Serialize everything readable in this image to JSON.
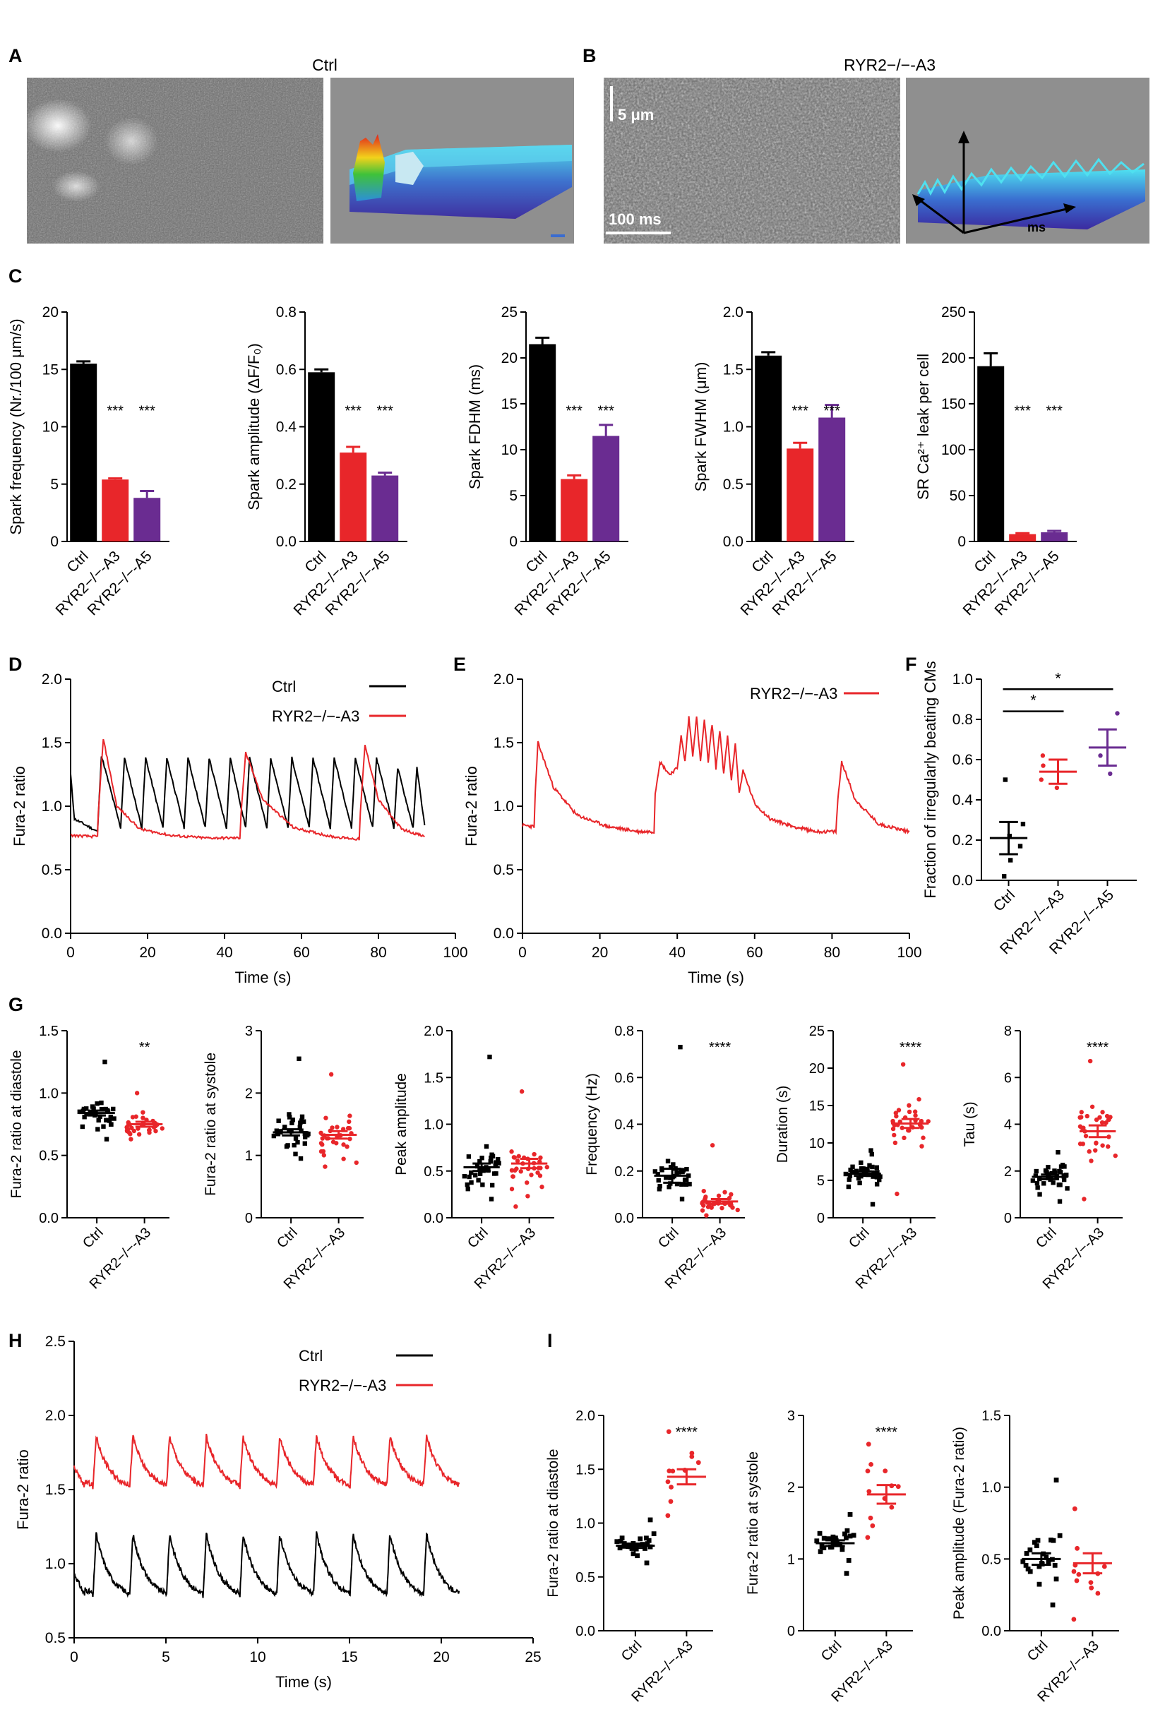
{
  "panel_letters": [
    "A",
    "B",
    "C",
    "D",
    "E",
    "F",
    "G",
    "H",
    "I"
  ],
  "panel_a": {
    "title": "Ctrl"
  },
  "panel_b": {
    "title": "RYR2−/−-A3",
    "scale_um": "5 μm",
    "scale_ms": "100 ms",
    "surface_axis": "ms"
  },
  "colors": {
    "ctrl": "#000000",
    "a3": "#e8262a",
    "a5": "#6a2c91",
    "gray": "#8c8c8c"
  },
  "sig": {
    "three": "***",
    "two": "**",
    "four": "****",
    "one": "*"
  },
  "chart_data": [
    {
      "id": "C1",
      "type": "bar",
      "categories": [
        "Ctrl",
        "RYR2−/−-A3",
        "RYR2−/−-A5"
      ],
      "values": [
        15.5,
        5.4,
        3.8
      ],
      "errors": [
        0.2,
        0.1,
        0.6
      ],
      "ylabel": "Spark frequency (Nr./100 μm/s)",
      "ylim": [
        0,
        20
      ],
      "yticks": [
        "0",
        "5",
        "10",
        "15",
        "20"
      ],
      "annotations": [
        "",
        "***",
        "***"
      ]
    },
    {
      "id": "C2",
      "type": "bar",
      "categories": [
        "Ctrl",
        "RYR2−/−-A3",
        "RYR2−/−-A5"
      ],
      "values": [
        0.59,
        0.31,
        0.23
      ],
      "errors": [
        0.01,
        0.02,
        0.01
      ],
      "ylabel": "Spark amplitude (ΔF/F₀)",
      "ylim": [
        0,
        0.8
      ],
      "yticks": [
        "0.0",
        "0.2",
        "0.4",
        "0.6",
        "0.8"
      ],
      "annotations": [
        "",
        "***",
        "***"
      ]
    },
    {
      "id": "C3",
      "type": "bar",
      "categories": [
        "Ctrl",
        "RYR2−/−-A3",
        "RYR2−/−-A5"
      ],
      "values": [
        21.5,
        6.8,
        11.5
      ],
      "errors": [
        0.7,
        0.4,
        1.2
      ],
      "ylabel": "Spark FDHM (ms)",
      "ylim": [
        0,
        25
      ],
      "yticks": [
        "0",
        "5",
        "10",
        "15",
        "20",
        "25"
      ],
      "annotations": [
        "",
        "***",
        "***"
      ]
    },
    {
      "id": "C4",
      "type": "bar",
      "categories": [
        "Ctrl",
        "RYR2−/−-A3",
        "RYR2−/−-A5"
      ],
      "values": [
        1.62,
        0.81,
        1.08
      ],
      "errors": [
        0.03,
        0.05,
        0.11
      ],
      "ylabel": "Spark FWHM (μm)",
      "ylim": [
        0,
        2.0
      ],
      "yticks": [
        "0.0",
        "0.5",
        "1.0",
        "1.5",
        "2.0"
      ],
      "annotations": [
        "",
        "***",
        "***"
      ]
    },
    {
      "id": "C5",
      "type": "bar",
      "categories": [
        "Ctrl",
        "RYR2−/−-A3",
        "RYR2−/−-A5"
      ],
      "values": [
        191,
        8,
        10
      ],
      "errors": [
        14,
        1,
        1.5
      ],
      "ylabel": "SR Ca²⁺ leak per cell",
      "ylim": [
        0,
        250
      ],
      "yticks": [
        "0",
        "50",
        "100",
        "150",
        "200",
        "250"
      ],
      "annotations": [
        "",
        "***",
        "***"
      ]
    },
    {
      "id": "D",
      "type": "line",
      "xlabel": "Time (s)",
      "ylabel": "Fura-2 ratio",
      "xlim": [
        0,
        100
      ],
      "ylim": [
        0,
        2.0
      ],
      "xticks": [
        "0",
        "20",
        "40",
        "60",
        "80",
        "100"
      ],
      "yticks": [
        "0.0",
        "0.5",
        "1.0",
        "1.5",
        "2.0"
      ],
      "legend": [
        "Ctrl",
        "RYR2−/−-A3"
      ],
      "series": [
        {
          "name": "Ctrl",
          "x": [
            0,
            1,
            7,
            8,
            13,
            14,
            18.5,
            19.5,
            24,
            25,
            29.5,
            30.5,
            35,
            36,
            40.5,
            41.5,
            45.5,
            46.5,
            51,
            52,
            56.5,
            57.5,
            62,
            63,
            67.5,
            68.5,
            73,
            74,
            78.5,
            79.5,
            84,
            85,
            89,
            90,
            92
          ],
          "y": [
            1.25,
            0.9,
            0.8,
            1.4,
            0.83,
            1.38,
            0.83,
            1.38,
            0.83,
            1.38,
            0.83,
            1.38,
            0.83,
            1.38,
            0.83,
            1.38,
            0.83,
            1.38,
            0.83,
            1.38,
            0.83,
            1.38,
            0.83,
            1.38,
            0.83,
            1.38,
            0.83,
            1.38,
            0.83,
            1.38,
            0.83,
            1.3,
            0.83,
            1.3,
            0.85
          ]
        },
        {
          "name": "RYR2−/−-A3",
          "x": [
            0,
            7,
            7.2,
            8.5,
            12,
            18,
            26,
            35,
            44,
            44.3,
            45.5,
            50,
            58,
            68,
            75,
            75.3,
            76.5,
            80,
            86,
            92
          ],
          "y": [
            0.77,
            0.76,
            0.95,
            1.53,
            1.0,
            0.82,
            0.77,
            0.75,
            0.75,
            0.95,
            1.42,
            1.05,
            0.83,
            0.76,
            0.74,
            0.95,
            1.48,
            1.05,
            0.82,
            0.76
          ]
        }
      ]
    },
    {
      "id": "E",
      "type": "line",
      "xlabel": "Time (s)",
      "ylabel": "Fura-2 ratio",
      "xlim": [
        0,
        100
      ],
      "ylim": [
        0,
        2.0
      ],
      "xticks": [
        "0",
        "20",
        "40",
        "60",
        "80",
        "100"
      ],
      "yticks": [
        "0.0",
        "0.5",
        "1.0",
        "1.5",
        "2.0"
      ],
      "legend": [
        "RYR2−/−-A3"
      ],
      "series": [
        {
          "name": "RYR2−/−-A3",
          "x": [
            0,
            3,
            3.3,
            4,
            8,
            14,
            22,
            30,
            34,
            34.3,
            35.5,
            38,
            40,
            41,
            42,
            43,
            44,
            45,
            46,
            47,
            48,
            49,
            50,
            51,
            52,
            53,
            54,
            55,
            56,
            57,
            60,
            64,
            70,
            76,
            81,
            81.5,
            82.5,
            86,
            92,
            100
          ],
          "y": [
            0.85,
            0.84,
            1.1,
            1.5,
            1.15,
            0.93,
            0.84,
            0.8,
            0.8,
            1.1,
            1.35,
            1.25,
            1.3,
            1.55,
            1.35,
            1.7,
            1.4,
            1.7,
            1.35,
            1.68,
            1.35,
            1.65,
            1.3,
            1.6,
            1.25,
            1.55,
            1.2,
            1.5,
            1.1,
            1.28,
            1.02,
            0.9,
            0.84,
            0.8,
            0.8,
            1.05,
            1.35,
            1.05,
            0.86,
            0.8
          ]
        }
      ]
    },
    {
      "id": "F",
      "type": "scatter",
      "ylabel": "Fraction of irregularly beating CMs",
      "ylim": [
        0,
        1.0
      ],
      "yticks": [
        "0.0",
        "0.2",
        "0.4",
        "0.6",
        "0.8",
        "1.0"
      ],
      "categories": [
        "Ctrl",
        "RYR2−/−-A3",
        "RYR2−/−-A5"
      ],
      "mean": [
        0.21,
        0.54,
        0.66
      ],
      "sem": [
        0.08,
        0.06,
        0.09
      ],
      "points": [
        [
          0.5,
          0.28,
          0.22,
          0.17,
          0.1,
          0.02
        ],
        [
          0.62,
          0.57,
          0.5,
          0.46
        ],
        [
          0.83,
          0.62,
          0.53
        ]
      ],
      "brackets": [
        {
          "from": 0,
          "to": 1,
          "y": 0.84,
          "label": "*"
        },
        {
          "from": 0,
          "to": 2,
          "y": 0.95,
          "label": "*"
        }
      ]
    },
    {
      "id": "G1",
      "type": "scatter",
      "ylabel": "Fura-2 ratio at diastole",
      "ylim": [
        0,
        1.5
      ],
      "yticks": [
        "0.0",
        "0.5",
        "1.0",
        "1.5"
      ],
      "categories": [
        "Ctrl",
        "RYR2−/−-A3"
      ],
      "mean": [
        0.84,
        0.75
      ],
      "sem": [
        0.02,
        0.02
      ],
      "annotations": [
        "",
        "**"
      ],
      "spread": [
        0.1,
        0.08
      ],
      "n": [
        34,
        32
      ],
      "extremes": [
        [
          1.25,
          0.63
        ],
        [
          1.0,
          0.63
        ]
      ]
    },
    {
      "id": "G2",
      "type": "scatter",
      "ylabel": "Fura-2 ratio at systole",
      "ylim": [
        0,
        3
      ],
      "yticks": [
        "0",
        "1",
        "2",
        "3"
      ],
      "categories": [
        "Ctrl",
        "RYR2−/−-A3"
      ],
      "mean": [
        1.37,
        1.33
      ],
      "sem": [
        0.05,
        0.06
      ],
      "annotations": [
        "",
        ""
      ],
      "spread": [
        0.25,
        0.3
      ],
      "n": [
        34,
        32
      ],
      "extremes": [
        [
          2.55,
          0.95
        ],
        [
          2.3,
          0.82
        ]
      ]
    },
    {
      "id": "G3",
      "type": "scatter",
      "ylabel": "Peak amplitude",
      "ylim": [
        0,
        2.0
      ],
      "yticks": [
        "0.0",
        "0.5",
        "1.0",
        "1.5",
        "2.0"
      ],
      "categories": [
        "Ctrl",
        "RYR2−/−-A3"
      ],
      "mean": [
        0.54,
        0.58
      ],
      "sem": [
        0.04,
        0.05
      ],
      "annotations": [
        "",
        ""
      ],
      "spread": [
        0.17,
        0.25
      ],
      "n": [
        34,
        32
      ],
      "extremes": [
        [
          1.72,
          0.2
        ],
        [
          1.35,
          0.12
        ]
      ]
    },
    {
      "id": "G4",
      "type": "scatter",
      "ylabel": "Frequency (Hz)",
      "ylim": [
        0,
        0.8
      ],
      "yticks": [
        "0.0",
        "0.2",
        "0.4",
        "0.6",
        "0.8"
      ],
      "categories": [
        "Ctrl",
        "RYR2−/−-A3"
      ],
      "mean": [
        0.18,
        0.07
      ],
      "sem": [
        0.03,
        0.01
      ],
      "annotations": [
        "",
        "****"
      ],
      "spread": [
        0.06,
        0.03
      ],
      "n": [
        34,
        32
      ],
      "extremes": [
        [
          0.73,
          0.08
        ],
        [
          0.31,
          0.01
        ]
      ]
    },
    {
      "id": "G5",
      "type": "scatter",
      "ylabel": "Duration (s)",
      "ylim": [
        0,
        25
      ],
      "yticks": [
        "0",
        "5",
        "10",
        "15",
        "20",
        "25"
      ],
      "categories": [
        "Ctrl",
        "RYR2−/−-A3"
      ],
      "mean": [
        5.9,
        12.6
      ],
      "sem": [
        0.3,
        0.6
      ],
      "annotations": [
        "",
        "****"
      ],
      "spread": [
        1.6,
        2.5
      ],
      "n": [
        34,
        32
      ],
      "extremes": [
        [
          9.0,
          1.8
        ],
        [
          20.5,
          3.2
        ]
      ]
    },
    {
      "id": "G6",
      "type": "scatter",
      "ylabel": "Tau (s)",
      "ylim": [
        0,
        8
      ],
      "yticks": [
        "0",
        "2",
        "4",
        "6",
        "8"
      ],
      "categories": [
        "Ctrl",
        "RYR2−/−-A3"
      ],
      "mean": [
        1.75,
        3.7
      ],
      "sem": [
        0.1,
        0.25
      ],
      "annotations": [
        "",
        "****"
      ],
      "spread": [
        0.45,
        1.1
      ],
      "n": [
        34,
        32
      ],
      "extremes": [
        [
          2.8,
          0.7
        ],
        [
          6.7,
          0.8
        ]
      ]
    },
    {
      "id": "H",
      "type": "line",
      "xlabel": "Time (s)",
      "ylabel": "Fura-2 ratio",
      "xlim": [
        0,
        25
      ],
      "ylim": [
        0.5,
        2.5
      ],
      "xticks": [
        "0",
        "5",
        "10",
        "15",
        "20",
        "25"
      ],
      "yticks": [
        "0.5",
        "1.0",
        "1.5",
        "2.0",
        "2.5"
      ],
      "legend": [
        "Ctrl",
        "RYR2−/−-A3"
      ],
      "period_s": 2.0,
      "series": [
        {
          "name": "Ctrl",
          "baseline": 0.76,
          "peak": 1.2,
          "first_peak_s": 1.2
        },
        {
          "name": "RYR2−/−-A3",
          "baseline": 1.5,
          "peak": 1.86,
          "first_peak_s": 1.2
        }
      ]
    },
    {
      "id": "I1",
      "type": "scatter",
      "ylabel": "Fura-2 ratio at diastole",
      "ylim": [
        0,
        2.0
      ],
      "yticks": [
        "0.0",
        "0.5",
        "1.0",
        "1.5",
        "2.0"
      ],
      "categories": [
        "Ctrl",
        "RYR2−/−-A3"
      ],
      "mean": [
        0.79,
        1.43
      ],
      "sem": [
        0.02,
        0.07
      ],
      "annotations": [
        "",
        "****"
      ],
      "spread": [
        0.07,
        0.18
      ],
      "n": [
        24,
        12
      ],
      "extremes": [
        [
          1.03,
          0.63
        ],
        [
          1.85,
          1.07
        ]
      ]
    },
    {
      "id": "I2",
      "type": "scatter",
      "ylabel": "Fura-2 ratio at systole",
      "ylim": [
        0,
        3
      ],
      "yticks": [
        "0",
        "1",
        "2",
        "3"
      ],
      "categories": [
        "Ctrl",
        "RYR2−/−-A3"
      ],
      "mean": [
        1.22,
        1.9
      ],
      "sem": [
        0.04,
        0.13
      ],
      "annotations": [
        "",
        "****"
      ],
      "spread": [
        0.15,
        0.35
      ],
      "n": [
        24,
        12
      ],
      "extremes": [
        [
          1.62,
          0.8
        ],
        [
          2.6,
          1.3
        ]
      ]
    },
    {
      "id": "I3",
      "type": "scatter",
      "ylabel": "Peak amplitude (Fura-2 ratio)",
      "ylim": [
        0,
        1.5
      ],
      "yticks": [
        "0.0",
        "0.5",
        "1.0",
        "1.5"
      ],
      "categories": [
        "Ctrl",
        "RYR2−/−-A3"
      ],
      "mean": [
        0.5,
        0.47
      ],
      "sem": [
        0.04,
        0.07
      ],
      "annotations": [
        "",
        ""
      ],
      "spread": [
        0.15,
        0.2
      ],
      "n": [
        24,
        12
      ],
      "extremes": [
        [
          1.05,
          0.18
        ],
        [
          0.85,
          0.08
        ]
      ]
    }
  ]
}
